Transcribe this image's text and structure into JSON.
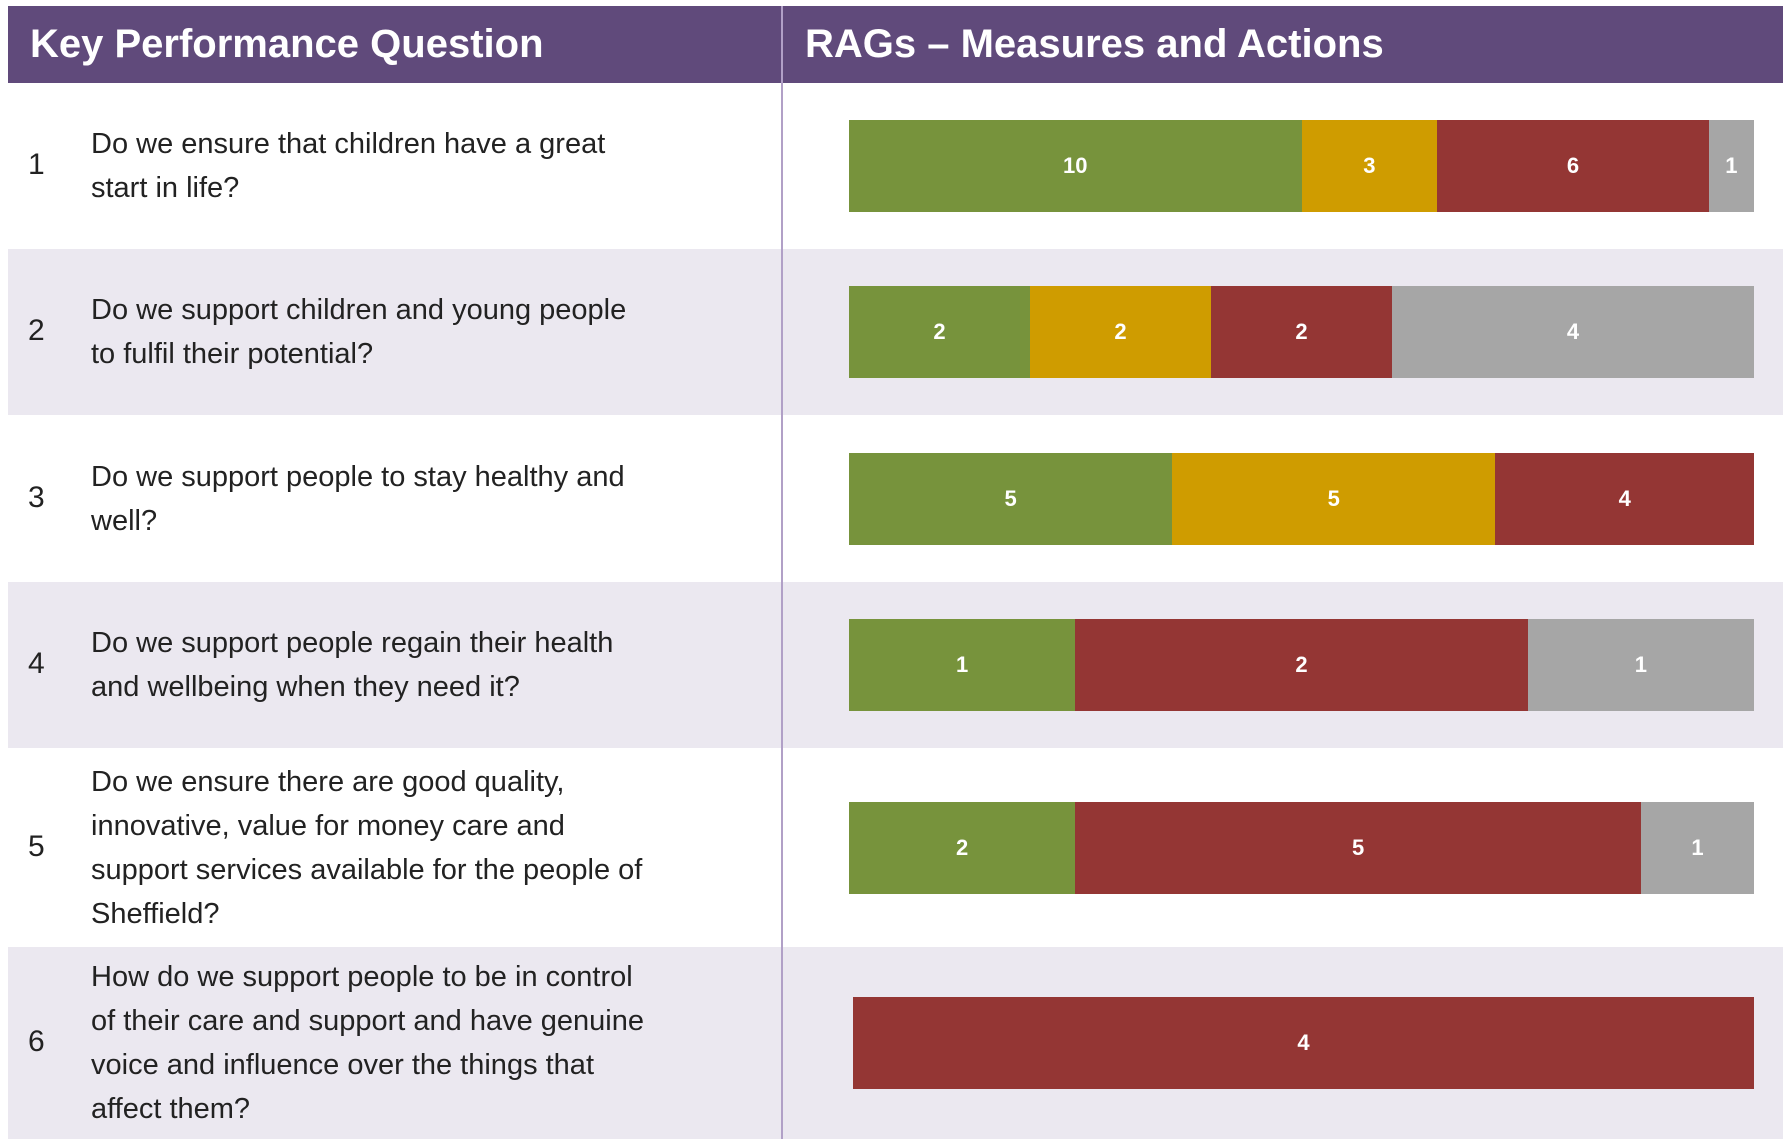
{
  "header": {
    "left": "Key Performance Question",
    "right": "RAGs – Measures and Actions"
  },
  "chart_data": {
    "type": "stacked-bar-100",
    "rows": [
      {
        "number": "1",
        "question": [
          "Do we ensure that children have a great",
          "start in life?"
        ],
        "segments": [
          {
            "value": 10,
            "color": "#77933c"
          },
          {
            "value": 3,
            "color": "#cf9c00"
          },
          {
            "value": 6,
            "color": "#943634"
          },
          {
            "value": 1,
            "color": "#a6a6a6"
          }
        ]
      },
      {
        "number": "2",
        "question": [
          "Do we support children and young people",
          "to fulfil their potential?"
        ],
        "segments": [
          {
            "value": 2,
            "color": "#77933c"
          },
          {
            "value": 2,
            "color": "#cf9c00"
          },
          {
            "value": 2,
            "color": "#943634"
          },
          {
            "value": 4,
            "color": "#a6a6a6"
          }
        ]
      },
      {
        "number": "3",
        "question": [
          "Do we support people to stay healthy and",
          "well?"
        ],
        "segments": [
          {
            "value": 5,
            "color": "#77933c"
          },
          {
            "value": 5,
            "color": "#cf9c00"
          },
          {
            "value": 4,
            "color": "#943634"
          }
        ]
      },
      {
        "number": "4",
        "question": [
          "Do we support people regain their health",
          "and wellbeing when they need it?"
        ],
        "segments": [
          {
            "value": 1,
            "color": "#77933c"
          },
          {
            "value": 2,
            "color": "#943634"
          },
          {
            "value": 1,
            "color": "#a6a6a6"
          }
        ]
      },
      {
        "number": "5",
        "question": [
          "Do we ensure there are good quality,",
          "innovative, value for money care and",
          "support services available for the people of",
          "Sheffield?"
        ],
        "segments": [
          {
            "value": 2,
            "color": "#77933c"
          },
          {
            "value": 5,
            "color": "#943634"
          },
          {
            "value": 1,
            "color": "#a6a6a6"
          }
        ]
      },
      {
        "number": "6",
        "question": [
          "How do we support people to be in control",
          "of their care and support and have genuine",
          "voice and influence over the things that",
          "affect them?"
        ],
        "segments": [
          {
            "value": 4,
            "color": "#943634"
          }
        ]
      }
    ]
  }
}
